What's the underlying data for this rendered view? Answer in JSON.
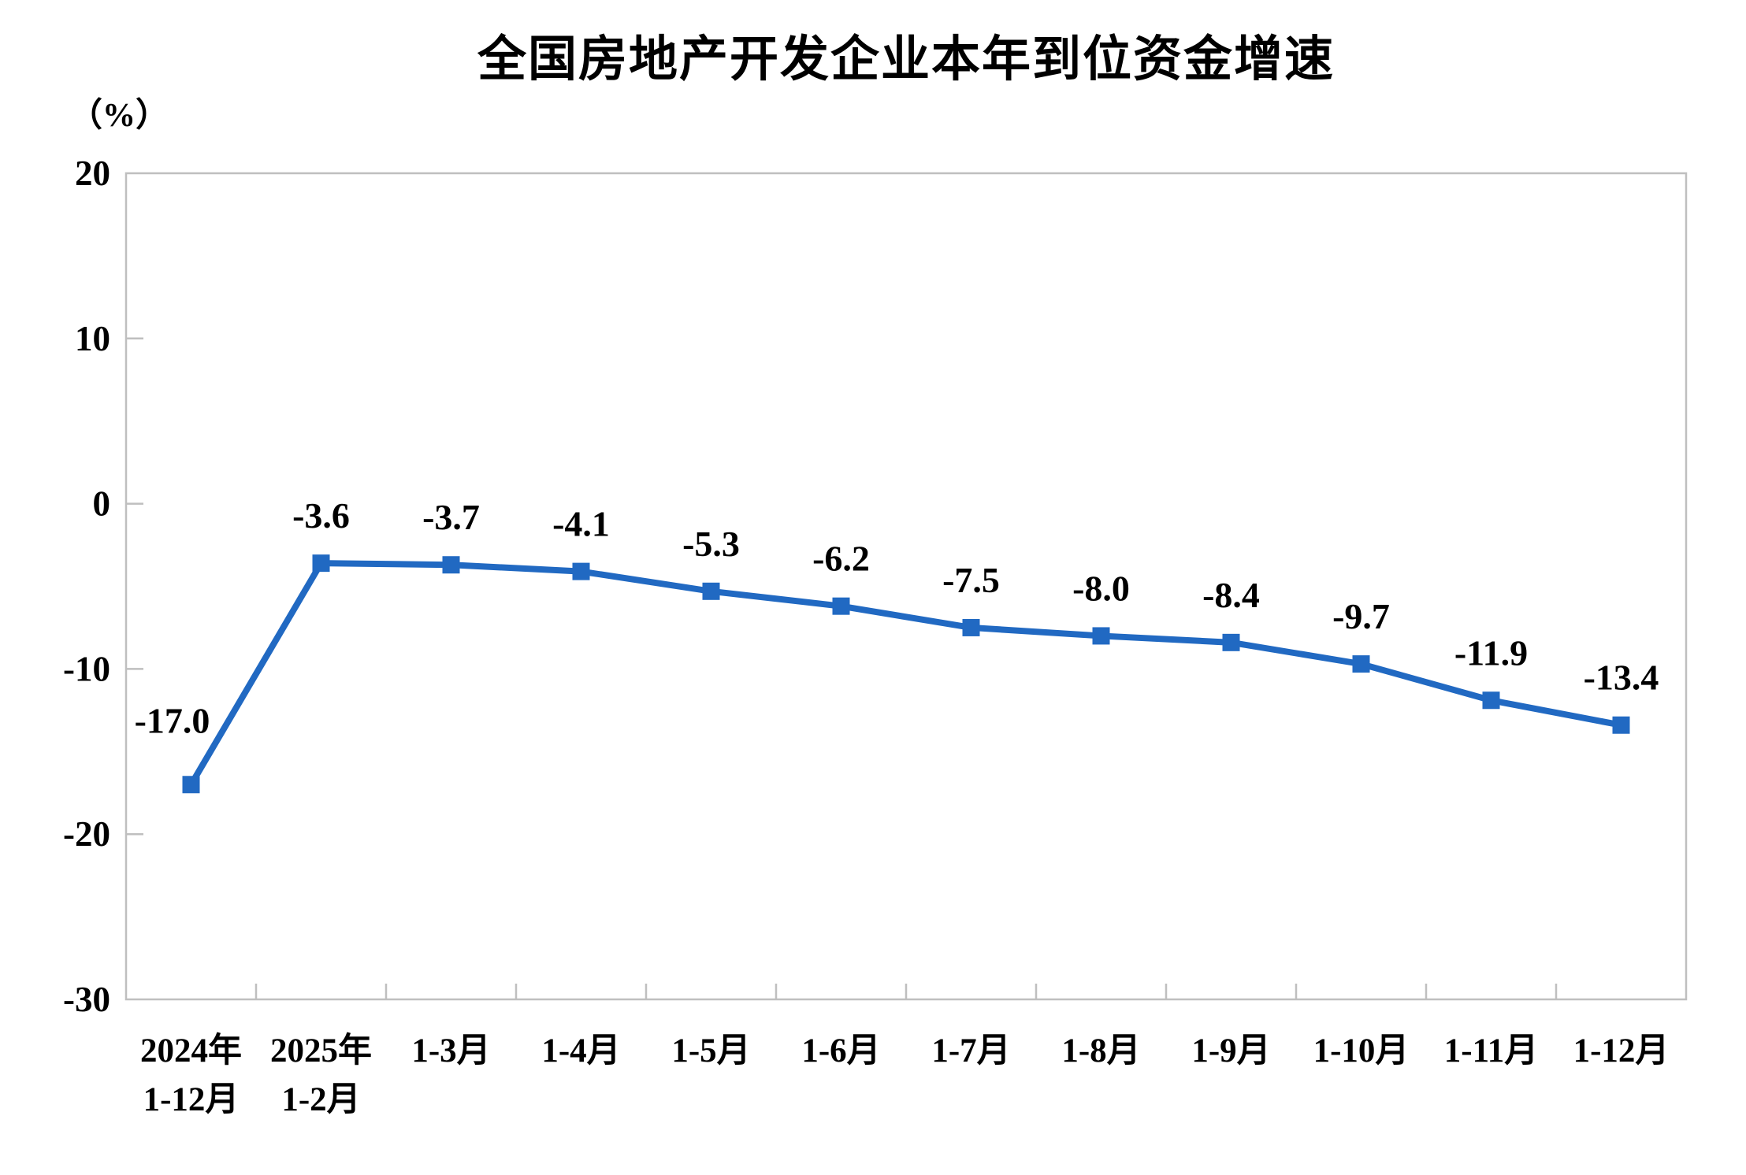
{
  "chart_data": {
    "type": "line",
    "title": "全国房地产开发企业本年到位资金增速",
    "unit_label": "（%）",
    "categories": [
      [
        "2024年",
        "1-12月"
      ],
      [
        "2025年",
        "1-2月"
      ],
      [
        "1-3月"
      ],
      [
        "1-4月"
      ],
      [
        "1-5月"
      ],
      [
        "1-6月"
      ],
      [
        "1-7月"
      ],
      [
        "1-8月"
      ],
      [
        "1-9月"
      ],
      [
        "1-10月"
      ],
      [
        "1-11月"
      ],
      [
        "1-12月"
      ]
    ],
    "values": [
      -17.0,
      -3.6,
      -3.7,
      -4.1,
      -5.3,
      -6.2,
      -7.5,
      -8.0,
      -8.4,
      -9.7,
      -11.9,
      -13.4
    ],
    "data_labels": [
      "-17.0",
      "-3.6",
      "-3.7",
      "-4.1",
      "-5.3",
      "-6.2",
      "-7.5",
      "-8.0",
      "-8.4",
      "-9.7",
      "-11.9",
      "-13.4"
    ],
    "ylim": [
      -30,
      20
    ],
    "yticks": [
      20,
      10,
      0,
      -10,
      -20,
      -30
    ],
    "xlabel": "",
    "ylabel": "（%）",
    "grid": false,
    "legend": "none",
    "marker": "square",
    "colors": {
      "line": "#2169C2",
      "marker": "#2169C2",
      "axis": "#BFBFBF",
      "text": "#000000",
      "background": "#FFFFFF"
    }
  }
}
